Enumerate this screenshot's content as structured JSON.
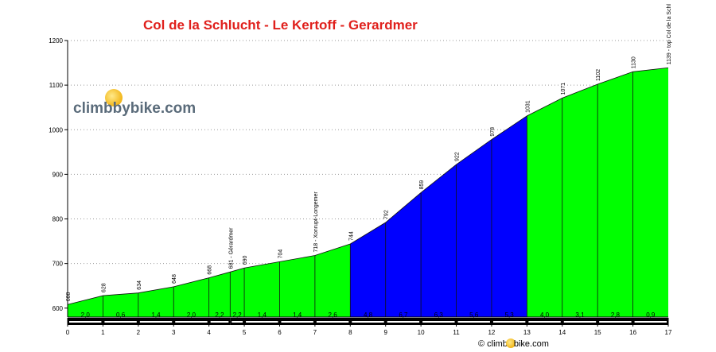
{
  "title": "Col de la Schlucht - Le Kertoff - Gerardmer",
  "logo": {
    "text": "climbbybike.com",
    "icon": "lightbulb-icon"
  },
  "footer": {
    "symbol": "©",
    "text_before": "climb",
    "text_after": "bike.com",
    "icon": "lightbulb-icon"
  },
  "colors": {
    "green": "#00ff00",
    "blue": "#0000ff",
    "title": "#e0201c"
  },
  "chart_data": {
    "type": "area",
    "title": "Col de la Schlucht - Le Kertoff - Gerardmer",
    "xlim": [
      0,
      17
    ],
    "ylim": [
      580,
      1200
    ],
    "x_ticks": [
      0,
      1,
      2,
      3,
      4,
      5,
      6,
      7,
      8,
      9,
      10,
      11,
      12,
      13,
      14,
      15,
      16,
      17
    ],
    "y_ticks": [
      600,
      700,
      800,
      900,
      1000,
      1100,
      1200
    ],
    "grid": "horizontal dotted",
    "points": [
      {
        "x": 0,
        "y": 608,
        "label": "608"
      },
      {
        "x": 1,
        "y": 628,
        "label": "628"
      },
      {
        "x": 2,
        "y": 634,
        "label": "634"
      },
      {
        "x": 3,
        "y": 648,
        "label": "648"
      },
      {
        "x": 4,
        "y": 668,
        "label": "668"
      },
      {
        "x": 4.6,
        "y": 681,
        "label": "681 - Gérardmer"
      },
      {
        "x": 5,
        "y": 690,
        "label": "690"
      },
      {
        "x": 6,
        "y": 704,
        "label": "704"
      },
      {
        "x": 7,
        "y": 718,
        "label": "718 - Xonrupt-Longemer"
      },
      {
        "x": 8,
        "y": 744,
        "label": "744"
      },
      {
        "x": 9,
        "y": 792,
        "label": "792"
      },
      {
        "x": 10,
        "y": 859,
        "label": "859"
      },
      {
        "x": 11,
        "y": 922,
        "label": "922"
      },
      {
        "x": 12,
        "y": 978,
        "label": "978"
      },
      {
        "x": 13,
        "y": 1031,
        "label": "1031"
      },
      {
        "x": 14,
        "y": 1071,
        "label": "1071"
      },
      {
        "x": 15,
        "y": 1102,
        "label": "1102"
      },
      {
        "x": 16,
        "y": 1130,
        "label": "1130"
      },
      {
        "x": 17,
        "y": 1139,
        "label": "1139 - top Col de la Schl"
      }
    ],
    "segments": [
      {
        "from": 0,
        "to": 1,
        "grade": "2,0",
        "color": "green"
      },
      {
        "from": 1,
        "to": 2,
        "grade": "0,6",
        "color": "green"
      },
      {
        "from": 2,
        "to": 3,
        "grade": "1,4",
        "color": "green"
      },
      {
        "from": 3,
        "to": 4,
        "grade": "2,0",
        "color": "green"
      },
      {
        "from": 4,
        "to": 4.6,
        "grade": "2,2",
        "color": "green"
      },
      {
        "from": 4.6,
        "to": 5,
        "grade": "2,2",
        "color": "green"
      },
      {
        "from": 5,
        "to": 6,
        "grade": "1,4",
        "color": "green"
      },
      {
        "from": 6,
        "to": 7,
        "grade": "1,4",
        "color": "green"
      },
      {
        "from": 7,
        "to": 8,
        "grade": "2,6",
        "color": "green"
      },
      {
        "from": 8,
        "to": 9,
        "grade": "4,8",
        "color": "blue"
      },
      {
        "from": 9,
        "to": 10,
        "grade": "6,7",
        "color": "blue"
      },
      {
        "from": 10,
        "to": 11,
        "grade": "6,3",
        "color": "blue"
      },
      {
        "from": 11,
        "to": 12,
        "grade": "5,6",
        "color": "blue"
      },
      {
        "from": 12,
        "to": 13,
        "grade": "5,3",
        "color": "blue"
      },
      {
        "from": 13,
        "to": 14,
        "grade": "4,0",
        "color": "green"
      },
      {
        "from": 14,
        "to": 15,
        "grade": "3,1",
        "color": "green"
      },
      {
        "from": 15,
        "to": 16,
        "grade": "2,8",
        "color": "green"
      },
      {
        "from": 16,
        "to": 17,
        "grade": "0,9",
        "color": "green"
      }
    ]
  }
}
